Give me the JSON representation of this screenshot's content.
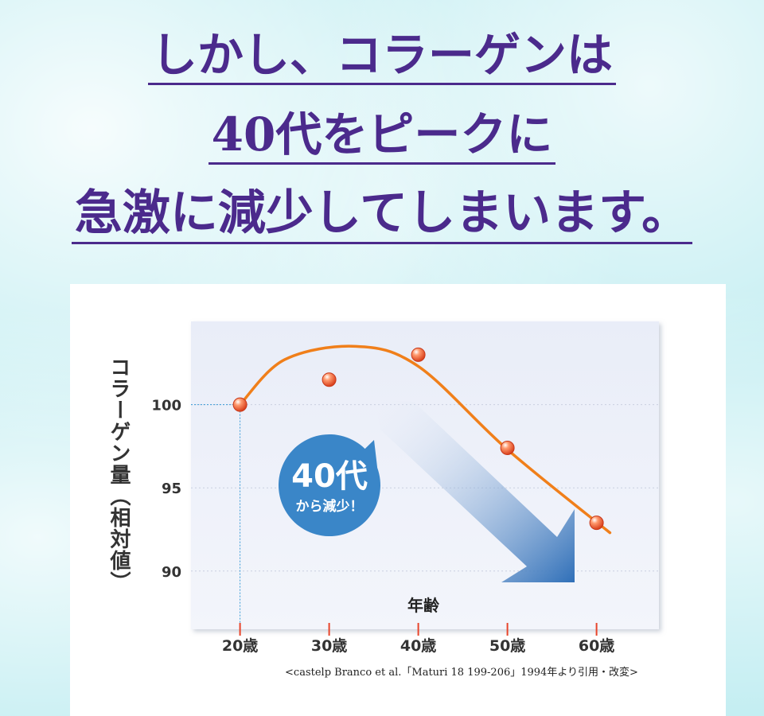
{
  "headline": {
    "line1": "しかし、コラーゲンは",
    "line2": "40代をピークに",
    "line3": "急激に減少してしまいます。"
  },
  "colors": {
    "headline": "#4b2a8c",
    "curve": "#f07f1a",
    "point": "#e8542a",
    "badge": "#3a86c8",
    "plot_bg": "#eef1f9",
    "arrow": "#2f6fb8"
  },
  "badge": {
    "line1": "40代",
    "line2": "から減少！"
  },
  "source": "<castelp Branco et al.「Maturi 18 199-206」1994年より引用・改変>",
  "chart_data": {
    "type": "line",
    "title": "",
    "xlabel": "年齢",
    "ylabel": "コラーゲン量（相対値）",
    "categories": [
      "20歳",
      "30歳",
      "40歳",
      "50歳",
      "60歳"
    ],
    "x": [
      20,
      30,
      40,
      50,
      60
    ],
    "points": [
      100,
      101.5,
      103,
      97.4,
      92.9
    ],
    "trend": {
      "x": [
        20,
        25,
        33,
        40,
        50,
        61.5
      ],
      "y": [
        100,
        102.7,
        103.5,
        102.3,
        97.3,
        92.3
      ]
    },
    "yticks": [
      100,
      95,
      90
    ],
    "ylim": [
      86.5,
      105
    ],
    "xlim": [
      14.5,
      67
    ],
    "grid": true,
    "reference_guides_at": {
      "x": 20,
      "y": 100
    }
  }
}
